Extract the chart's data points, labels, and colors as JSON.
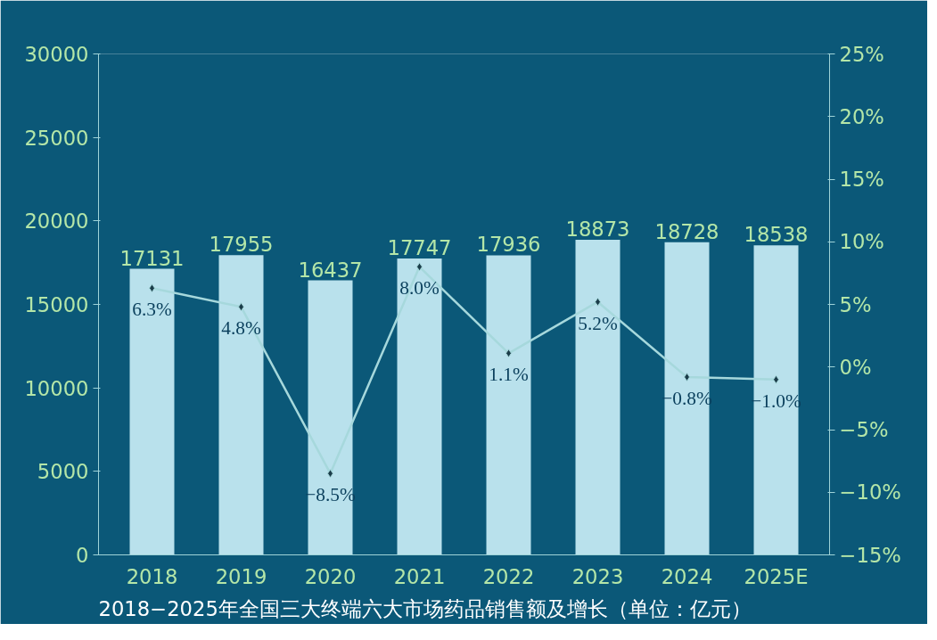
{
  "chart_data": {
    "type": "bar",
    "title": "2018−2025年全国三大终端六大市场药品销售额及增长（单位：亿元）",
    "categories": [
      "2018",
      "2019",
      "2020",
      "2021",
      "2022",
      "2023",
      "2024",
      "2025E"
    ],
    "series": [
      {
        "color": "#b9e1ec",
        "values": [
          17131,
          17955,
          16437,
          17747,
          17936,
          18873,
          18728,
          18538
        ]
      },
      {
        "type": "line",
        "axis": "y2",
        "color": "#a6d8dc",
        "values": [
          6.3,
          4.8,
          -8.5,
          8.0,
          1.1,
          5.2,
          -0.8,
          -1.0
        ],
        "value_labels": [
          "6.3%",
          "4.8%",
          "−8.5%",
          "8.0%",
          "1.1%",
          "5.2%",
          "−0.8%",
          "−1.0%"
        ]
      }
    ],
    "data_labels": true,
    "marker": "diamond",
    "grid": false,
    "ylim": [
      0,
      30000
    ],
    "yticks": [
      0,
      5000,
      10000,
      15000,
      20000,
      25000,
      30000
    ],
    "y2lim": [
      -15,
      25
    ],
    "y2ticks": [
      {
        "value": -15,
        "label": "−15%"
      },
      {
        "value": -10,
        "label": "−10%"
      },
      {
        "value": -5,
        "label": "−5%"
      },
      {
        "value": 0,
        "label": "0%"
      },
      {
        "value": 5,
        "label": "5%"
      },
      {
        "value": 10,
        "label": "10%"
      },
      {
        "value": 15,
        "label": "15%"
      },
      {
        "value": 20,
        "label": "20%"
      },
      {
        "value": 25,
        "label": "25%"
      }
    ]
  }
}
